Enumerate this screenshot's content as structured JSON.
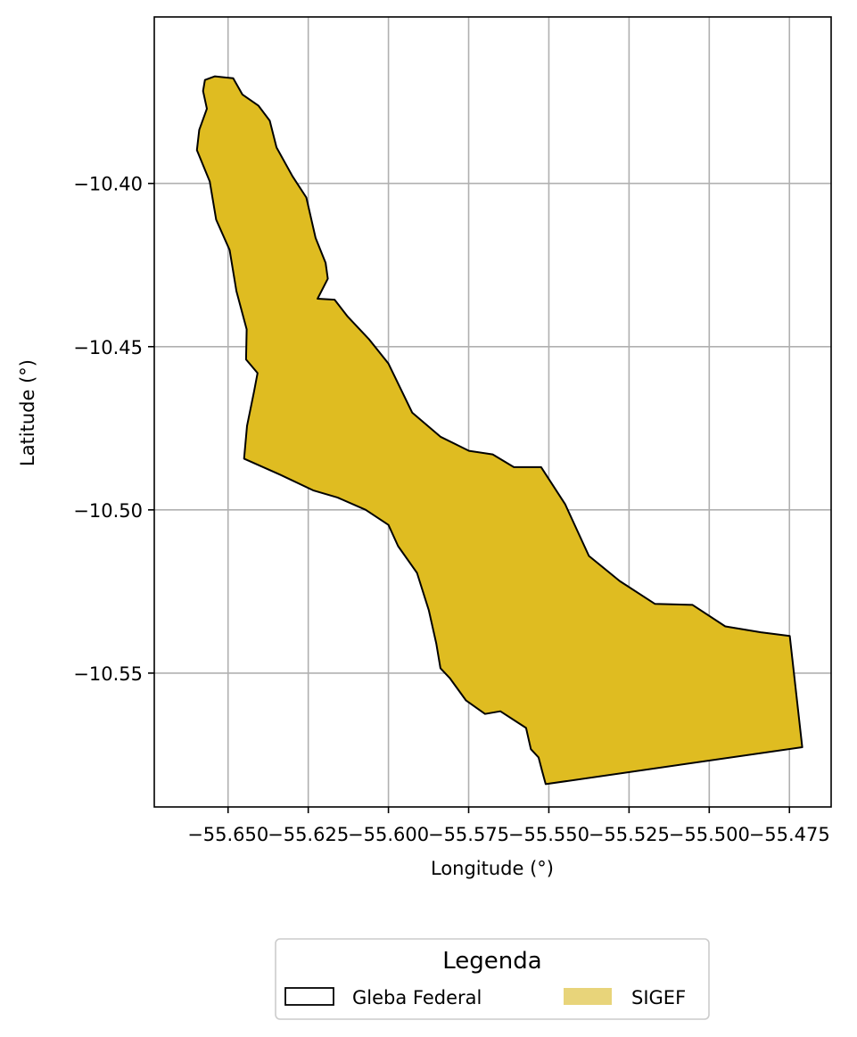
{
  "chart_data": {
    "type": "map",
    "xlabel": "Longitude (°)",
    "ylabel": "Latitude (°)",
    "xlim": [
      -55.673,
      -55.462
    ],
    "ylim": [
      -10.591,
      -10.349
    ],
    "grid": true,
    "x_ticks": [
      {
        "value": -55.65,
        "label": "−55.650"
      },
      {
        "value": -55.625,
        "label": "−55.625"
      },
      {
        "value": -55.6,
        "label": "−55.600"
      },
      {
        "value": -55.575,
        "label": "−55.575"
      },
      {
        "value": -55.55,
        "label": "−55.550"
      },
      {
        "value": -55.525,
        "label": "−55.525"
      },
      {
        "value": -55.5,
        "label": "−55.500"
      },
      {
        "value": -55.475,
        "label": "−55.475"
      }
    ],
    "y_ticks": [
      {
        "value": -10.4,
        "label": "−10.40"
      },
      {
        "value": -10.45,
        "label": "−10.45"
      },
      {
        "value": -10.5,
        "label": "−10.50"
      },
      {
        "value": -10.55,
        "label": "−10.55"
      }
    ],
    "legend": {
      "title": "Legenda",
      "placement": "bottom-center",
      "entries": [
        {
          "label": "Gleba Federal",
          "style": "outline"
        },
        {
          "label": "SIGEF",
          "style": "fill"
        }
      ]
    },
    "colors": {
      "sigef_fill": "#dfbc21",
      "sigef_legend_fill": "#e8d47a",
      "outline": "#000000",
      "grid": "#b0b0b0"
    },
    "polygon": [
      [
        -55.6541,
        -10.3672
      ],
      [
        -55.6484,
        -10.3678
      ],
      [
        -55.6455,
        -10.3728
      ],
      [
        -55.6405,
        -10.3762
      ],
      [
        -55.637,
        -10.3808
      ],
      [
        -55.6349,
        -10.389
      ],
      [
        -55.6299,
        -10.3978
      ],
      [
        -55.6256,
        -10.4043
      ],
      [
        -55.6227,
        -10.4167
      ],
      [
        -55.6196,
        -10.4243
      ],
      [
        -55.6189,
        -10.4292
      ],
      [
        -55.6221,
        -10.4353
      ],
      [
        -55.6168,
        -10.4356
      ],
      [
        -55.6127,
        -10.4408
      ],
      [
        -55.606,
        -10.4478
      ],
      [
        -55.6,
        -10.4552
      ],
      [
        -55.5926,
        -10.4702
      ],
      [
        -55.5838,
        -10.4776
      ],
      [
        -55.5749,
        -10.4819
      ],
      [
        -55.5675,
        -10.483
      ],
      [
        -55.5609,
        -10.4869
      ],
      [
        -55.5524,
        -10.4869
      ],
      [
        -55.5449,
        -10.4983
      ],
      [
        -55.5375,
        -10.5141
      ],
      [
        -55.5279,
        -10.5218
      ],
      [
        -55.5169,
        -10.5288
      ],
      [
        -55.5052,
        -10.5291
      ],
      [
        -55.495,
        -10.5357
      ],
      [
        -55.4839,
        -10.5375
      ],
      [
        -55.4749,
        -10.5386
      ],
      [
        -55.471,
        -10.5727
      ],
      [
        -55.551,
        -10.584
      ],
      [
        -55.5521,
        -10.58
      ],
      [
        -55.5532,
        -10.5758
      ],
      [
        -55.5556,
        -10.5733
      ],
      [
        -55.5571,
        -10.5668
      ],
      [
        -55.5651,
        -10.5617
      ],
      [
        -55.5699,
        -10.5625
      ],
      [
        -55.5758,
        -10.5584
      ],
      [
        -55.5809,
        -10.5515
      ],
      [
        -55.5838,
        -10.5485
      ],
      [
        -55.5851,
        -10.5409
      ],
      [
        -55.5874,
        -10.5308
      ],
      [
        -55.5911,
        -10.5193
      ],
      [
        -55.597,
        -10.5111
      ],
      [
        -55.6,
        -10.5046
      ],
      [
        -55.6071,
        -10.5
      ],
      [
        -55.6159,
        -10.4962
      ],
      [
        -55.6235,
        -10.494
      ],
      [
        -55.6338,
        -10.4892
      ],
      [
        -55.645,
        -10.4843
      ],
      [
        -55.6441,
        -10.4743
      ],
      [
        -55.6419,
        -10.4637
      ],
      [
        -55.6408,
        -10.4581
      ],
      [
        -55.6444,
        -10.4539
      ],
      [
        -55.6442,
        -10.4447
      ],
      [
        -55.6474,
        -10.433
      ],
      [
        -55.6495,
        -10.4204
      ],
      [
        -55.6537,
        -10.4111
      ],
      [
        -55.6557,
        -10.3994
      ],
      [
        -55.6597,
        -10.3898
      ],
      [
        -55.659,
        -10.3836
      ],
      [
        -55.6566,
        -10.3771
      ],
      [
        -55.6578,
        -10.3717
      ],
      [
        -55.6572,
        -10.3683
      ],
      [
        -55.6541,
        -10.3672
      ]
    ]
  }
}
